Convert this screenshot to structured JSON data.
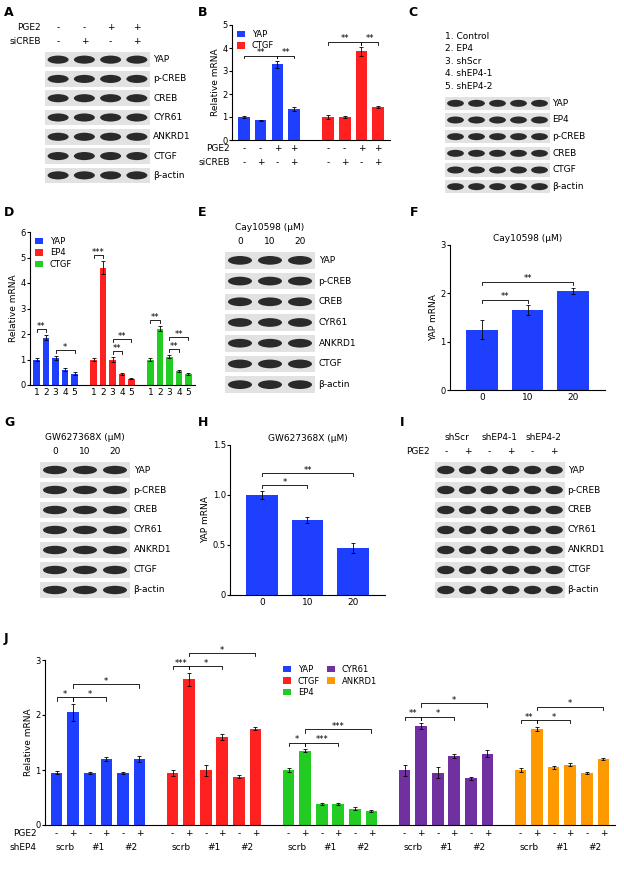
{
  "chart_data": [
    {
      "panel_label": "B",
      "type": "bar",
      "y_label": "Relative mRNA",
      "categories": [
        null,
        null,
        null,
        null
      ],
      "x_rows": [
        {
          "label": "PGE2",
          "values": [
            "-",
            "-",
            "+",
            "+"
          ]
        },
        {
          "label": "siCREB",
          "values": [
            "-",
            "+",
            "-",
            "+"
          ]
        }
      ],
      "series": [
        {
          "name": "YAP",
          "color": "#1f3fff",
          "values": [
            1.0,
            0.85,
            3.3,
            1.35
          ],
          "errors": [
            0.05,
            0.04,
            0.15,
            0.08
          ]
        },
        {
          "name": "CTGF",
          "color": "#ff2020",
          "values": [
            1.0,
            1.0,
            3.85,
            1.45
          ],
          "errors": [
            0.08,
            0.05,
            0.2,
            0.05
          ]
        }
      ],
      "ylim": [
        0,
        5
      ],
      "yticks": [
        0,
        1,
        2,
        3,
        4,
        5
      ],
      "legend": "upper left",
      "annotations": [
        {
          "series": 0,
          "from": 0,
          "to": 2,
          "text": "**"
        },
        {
          "series": 0,
          "from": 2,
          "to": 3,
          "text": "**"
        },
        {
          "series": 1,
          "from": 0,
          "to": 2,
          "text": "**"
        },
        {
          "series": 1,
          "from": 2,
          "to": 3,
          "text": "**"
        }
      ]
    },
    {
      "panel_label": "D",
      "type": "bar",
      "y_label": "Relative mRNA",
      "categories": [
        "1",
        "2",
        "3",
        "4",
        "5"
      ],
      "series": [
        {
          "name": "YAP",
          "color": "#1f3fff",
          "values": [
            1.0,
            1.85,
            1.05,
            0.6,
            0.45
          ],
          "errors": [
            0.04,
            0.1,
            0.08,
            0.05,
            0.05
          ]
        },
        {
          "name": "EP4",
          "color": "#ff2020",
          "values": [
            1.0,
            4.6,
            1.0,
            0.45,
            0.25
          ],
          "errors": [
            0.05,
            0.25,
            0.08,
            0.04,
            0.03
          ]
        },
        {
          "name": "CTGF",
          "color": "#22cc22",
          "values": [
            1.0,
            2.2,
            1.1,
            0.55,
            0.45
          ],
          "errors": [
            0.04,
            0.1,
            0.06,
            0.04,
            0.04
          ]
        }
      ],
      "ylim": [
        0,
        6
      ],
      "yticks": [
        0,
        1,
        2,
        3,
        4,
        5,
        6
      ],
      "legend": "upper left",
      "annotations": [
        {
          "series": 0,
          "from": 0,
          "to": 1,
          "text": "**"
        },
        {
          "series": 0,
          "from": 2,
          "to": 4,
          "text": "*"
        },
        {
          "series": 1,
          "from": 0,
          "to": 1,
          "text": "***"
        },
        {
          "series": 1,
          "from": 2,
          "to": 3,
          "text": "**"
        },
        {
          "series": 1,
          "from": 2,
          "to": 4,
          "text": "**"
        },
        {
          "series": 2,
          "from": 0,
          "to": 1,
          "text": "**"
        },
        {
          "series": 2,
          "from": 2,
          "to": 3,
          "text": "**"
        },
        {
          "series": 2,
          "from": 2,
          "to": 4,
          "text": "**"
        }
      ]
    },
    {
      "panel_label": "F",
      "type": "bar",
      "title": "Cay10598 (μM)",
      "y_label": "YAP mRNA",
      "categories": [
        "0",
        "10",
        "20"
      ],
      "series": [
        {
          "color": "#1f3fff",
          "values": [
            1.25,
            1.65,
            2.05
          ],
          "errors": [
            0.2,
            0.1,
            0.07
          ]
        }
      ],
      "ylim": [
        0,
        3
      ],
      "yticks": [
        0,
        1,
        2,
        3
      ],
      "annotations": [
        {
          "series": 0,
          "from": 0,
          "to": 1,
          "text": "**"
        },
        {
          "series": 0,
          "from": 0,
          "to": 2,
          "text": "**"
        }
      ]
    },
    {
      "panel_label": "H",
      "type": "bar",
      "title": "GW627368X (μM)",
      "y_label": "YAP mRNA",
      "categories": [
        "0",
        "10",
        "20"
      ],
      "series": [
        {
          "color": "#1f3fff",
          "values": [
            1.0,
            0.75,
            0.47
          ],
          "errors": [
            0.04,
            0.03,
            0.05
          ]
        }
      ],
      "ylim": [
        0,
        1.5
      ],
      "yticks": [
        0,
        0.5,
        {
          "value": 1.0,
          "label": "1.0"
        },
        1.5
      ],
      "annotations": [
        {
          "series": 0,
          "from": 0,
          "to": 1,
          "text": "*"
        },
        {
          "series": 0,
          "from": 0,
          "to": 2,
          "text": "**"
        }
      ]
    },
    {
      "panel_label": "J",
      "type": "bar",
      "y_label": "Relative mRNA",
      "categories": [
        null,
        null,
        null,
        null,
        null,
        null
      ],
      "x_rows": [
        {
          "label": "PGE2",
          "values": [
            "-",
            "+",
            "-",
            "+",
            "-",
            "+"
          ]
        }
      ],
      "x_groups": {
        "label": "shEP4",
        "names": [
          "scrb",
          "#1",
          "#2"
        ]
      },
      "series": [
        {
          "name": "YAP",
          "color": "#1f3fff",
          "values": [
            0.95,
            2.05,
            0.95,
            1.2,
            0.95,
            1.2
          ],
          "errors": [
            0.03,
            0.15,
            0.02,
            0.03,
            0.02,
            0.05
          ]
        },
        {
          "name": "CTGF",
          "color": "#ff2020",
          "values": [
            0.95,
            2.65,
            1.0,
            1.6,
            0.88,
            1.75
          ],
          "errors": [
            0.05,
            0.12,
            0.1,
            0.06,
            0.03,
            0.03
          ]
        },
        {
          "name": "EP4",
          "color": "#22cc22",
          "values": [
            1.0,
            1.35,
            0.38,
            0.38,
            0.3,
            0.25
          ],
          "errors": [
            0.03,
            0.03,
            0.02,
            0.02,
            0.02,
            0.02
          ]
        },
        {
          "name": "CYR61",
          "color": "#7030a0",
          "values": [
            1.0,
            1.8,
            0.95,
            1.25,
            0.85,
            1.3
          ],
          "errors": [
            0.1,
            0.05,
            0.1,
            0.04,
            0.03,
            0.06
          ]
        },
        {
          "name": "ANKRD1",
          "color": "#ff9900",
          "values": [
            1.0,
            1.75,
            1.05,
            1.1,
            0.95,
            1.2
          ],
          "errors": [
            0.03,
            0.04,
            0.03,
            0.02,
            0.02,
            0.02
          ]
        }
      ],
      "ylim": [
        0,
        3
      ],
      "yticks": [
        0,
        1,
        2,
        3
      ],
      "legend": "upper center",
      "annotations": [
        {
          "series": 0,
          "from": 0,
          "to": 1,
          "text": "*"
        },
        {
          "series": 0,
          "from": 1,
          "to": 3,
          "text": "*"
        },
        {
          "series": 0,
          "from": 1,
          "to": 5,
          "text": "*"
        },
        {
          "series": 1,
          "from": 0,
          "to": 1,
          "text": "***"
        },
        {
          "series": 1,
          "from": 1,
          "to": 3,
          "text": "*"
        },
        {
          "series": 1,
          "from": 1,
          "to": 5,
          "text": "*"
        },
        {
          "series": 2,
          "from": 0,
          "to": 1,
          "text": "*"
        },
        {
          "series": 2,
          "from": 1,
          "to": 3,
          "text": "***"
        },
        {
          "series": 2,
          "from": 1,
          "to": 5,
          "text": "***"
        },
        {
          "series": 3,
          "from": 0,
          "to": 1,
          "text": "**"
        },
        {
          "series": 3,
          "from": 1,
          "to": 3,
          "text": "*"
        },
        {
          "series": 3,
          "from": 1,
          "to": 5,
          "text": "*"
        },
        {
          "series": 4,
          "from": 0,
          "to": 1,
          "text": "**"
        },
        {
          "series": 4,
          "from": 1,
          "to": 3,
          "text": "*"
        },
        {
          "series": 4,
          "from": 1,
          "to": 5,
          "text": "*"
        }
      ]
    }
  ],
  "blots": [
    {
      "panel_label": "A",
      "lanes": 4,
      "header_rows": [
        {
          "label": "PGE2",
          "values": [
            "-",
            "-",
            "+",
            "+"
          ]
        },
        {
          "label": "siCREB",
          "values": [
            "-",
            "+",
            "-",
            "+"
          ]
        }
      ],
      "rows": [
        "YAP",
        "p-CREB",
        "CREB",
        "CYR61",
        "ANKRD1",
        "CTGF",
        "β-actin"
      ]
    },
    {
      "panel_label": "C",
      "lanes": 5,
      "notes": [
        "1. Control",
        "2. EP4",
        "3. shScr",
        "4. shEP4-1",
        "5. shEP4-2"
      ],
      "rows": [
        "YAP",
        "EP4",
        "p-CREB",
        "CREB",
        "CTGF",
        "β-actin"
      ]
    },
    {
      "panel_label": "E",
      "lanes": 3,
      "title": "Cay10598 (μM)",
      "header_rows": [
        {
          "values": [
            "0",
            "10",
            "20"
          ]
        }
      ],
      "rows": [
        "YAP",
        "p-CREB",
        "CREB",
        "CYR61",
        "ANKRD1",
        "CTGF",
        "β-actin"
      ]
    },
    {
      "panel_label": "G",
      "lanes": 3,
      "title": "GW627368X (μM)",
      "header_rows": [
        {
          "values": [
            "0",
            "10",
            "20"
          ]
        }
      ],
      "rows": [
        "YAP",
        "p-CREB",
        "CREB",
        "CYR61",
        "ANKRD1",
        "CTGF",
        "β-actin"
      ]
    },
    {
      "panel_label": "I",
      "lanes": 6,
      "header_rows": [
        {
          "values": [
            "shScr",
            "shEP4-1",
            "shEP4-2"
          ]
        },
        {
          "label": "PGE2",
          "values": [
            "-",
            "+",
            "-",
            "+",
            "-",
            "+"
          ]
        }
      ],
      "rows": [
        "YAP",
        "p-CREB",
        "CREB",
        "CYR61",
        "ANKRD1",
        "CTGF",
        "β-actin"
      ]
    }
  ]
}
